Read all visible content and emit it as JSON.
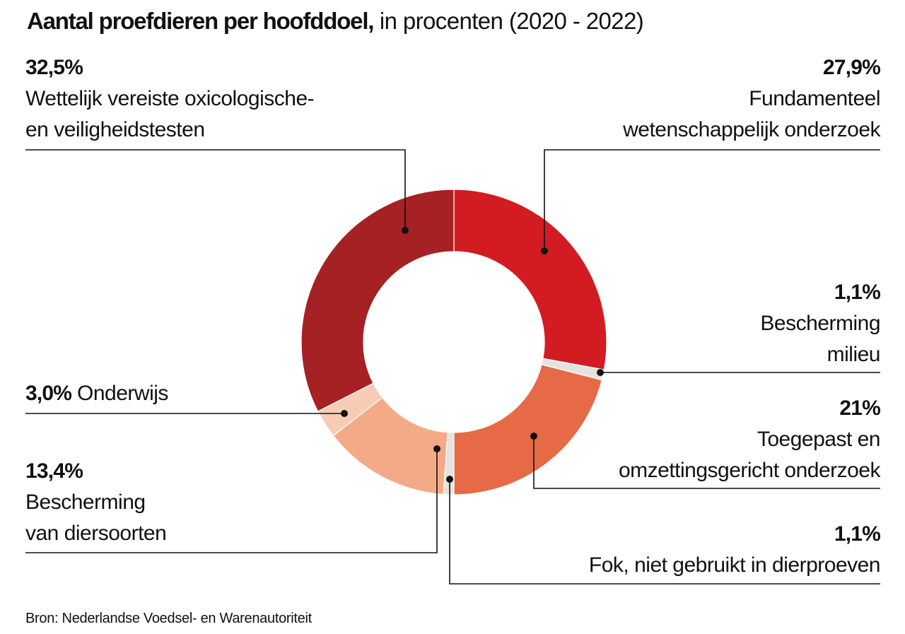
{
  "chart_data": {
    "type": "donut",
    "title": "Aantal proefdieren per hoofddoel,",
    "subtitle": "in procenten (2020 - 2022)",
    "unit": "%",
    "slices": [
      {
        "label": "Fundamenteel wetenschappelijk onderzoek",
        "label_lines": [
          "Fundamenteel",
          "wetenschappelijk onderzoek"
        ],
        "value": 27.9,
        "value_label": "27,9%",
        "color": "#d21c22"
      },
      {
        "label": "Bescherming milieu",
        "label_lines": [
          "Bescherming",
          "milieu"
        ],
        "value": 1.1,
        "value_label": "1,1%",
        "color": "#e6e3df"
      },
      {
        "label": "Toegepast en omzettingsgericht onderzoek",
        "label_lines": [
          "Toegepast en",
          "omzettingsgericht onderzoek"
        ],
        "value": 21,
        "value_label": "21%",
        "color": "#e66a45"
      },
      {
        "label": "Fok, niet gebruikt in dierproeven",
        "label_lines": [
          "Fok, niet gebruikt in dierproeven"
        ],
        "value": 1.1,
        "value_label": "1,1%",
        "color": "#e6e3df"
      },
      {
        "label": "Bescherming van diersoorten",
        "label_lines": [
          "Bescherming",
          "van diersoorten"
        ],
        "value": 13.4,
        "value_label": "13,4%",
        "color": "#f4aa86"
      },
      {
        "label": "Onderwijs",
        "label_lines": [
          "Onderwijs"
        ],
        "value": 3.0,
        "value_label": "3,0%",
        "color": "#f6ccb7"
      },
      {
        "label": "Wettelijk vereiste oxicologische- en veiligheidstesten",
        "label_lines": [
          "Wettelijk vereiste oxicologische-",
          "en veiligheidstesten"
        ],
        "value": 32.5,
        "value_label": "32,5%",
        "color": "#a52124"
      }
    ]
  },
  "source": "Bron: Nederlandse Voedsel- en Warenautoriteit"
}
